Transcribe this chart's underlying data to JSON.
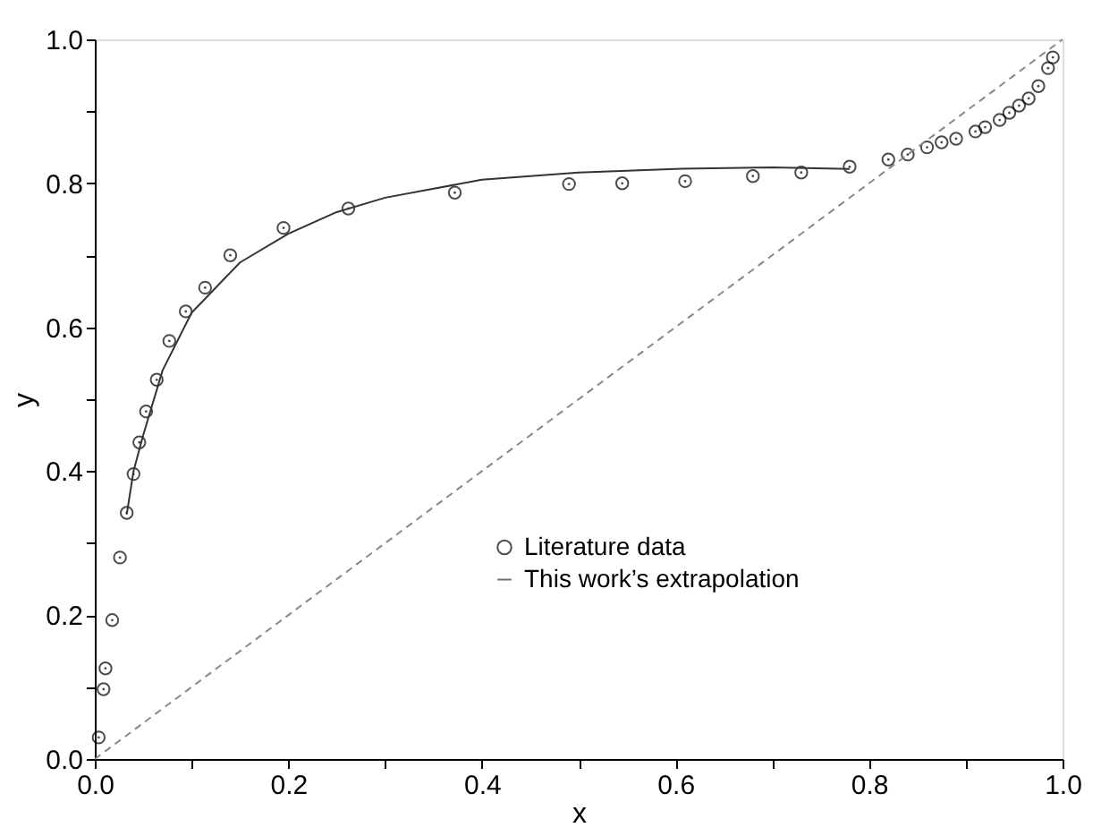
{
  "chart_data": {
    "type": "scatter",
    "xlabel": "x",
    "ylabel": "y",
    "xlim": [
      0,
      1
    ],
    "ylim": [
      0,
      1
    ],
    "xticks": [
      {
        "value": 0,
        "label": "0.0"
      },
      {
        "value": 0.1,
        "label": null
      },
      0.2,
      {
        "value": 0.3,
        "label": null
      },
      0.4,
      {
        "value": 0.5,
        "label": null
      },
      0.6,
      {
        "value": 0.7,
        "label": null
      },
      0.8,
      {
        "value": 0.9,
        "label": null
      },
      {
        "value": 1,
        "label": "1.0"
      }
    ],
    "yticks": [
      {
        "value": 0,
        "label": "0.0"
      },
      {
        "value": 0.1,
        "label": null
      },
      0.2,
      {
        "value": 0.3,
        "label": null
      },
      0.4,
      {
        "value": 0.5,
        "label": null
      },
      0.6,
      {
        "value": 0.7,
        "label": null
      },
      0.8,
      {
        "value": 0.9,
        "label": null
      },
      {
        "value": 1,
        "label": "1.0"
      }
    ],
    "grid": false,
    "legend": "bottom",
    "series": [
      {
        "name": "Literature data",
        "type": "scatter",
        "marker": "circle",
        "color": "#000000",
        "x": [
          0.004,
          0.009,
          0.011,
          0.018,
          0.026,
          0.033,
          0.04,
          0.046,
          0.053,
          0.064,
          0.077,
          0.094,
          0.114,
          0.14,
          0.195,
          0.262,
          0.372,
          0.49,
          0.545,
          0.61,
          0.68,
          0.73,
          0.78,
          0.82,
          0.84,
          0.86,
          0.875,
          0.89,
          0.91,
          0.92,
          0.935,
          0.945,
          0.955,
          0.965,
          0.975,
          0.985,
          0.99
        ],
        "values": [
          0.03,
          0.097,
          0.126,
          0.193,
          0.28,
          0.342,
          0.396,
          0.44,
          0.483,
          0.527,
          0.581,
          0.622,
          0.655,
          0.7,
          0.738,
          0.765,
          0.787,
          0.799,
          0.8,
          0.803,
          0.81,
          0.815,
          0.823,
          0.833,
          0.84,
          0.85,
          0.857,
          0.862,
          0.872,
          0.878,
          0.888,
          0.898,
          0.908,
          0.918,
          0.935,
          0.96,
          0.975
        ]
      },
      {
        "name": "This work’s extrapolation",
        "type": "line",
        "color": "#333333",
        "line_style": "solid",
        "x": [
          0.033,
          0.04,
          0.05,
          0.07,
          0.1,
          0.15,
          0.2,
          0.25,
          0.3,
          0.4,
          0.5,
          0.6,
          0.7,
          0.78
        ],
        "values": [
          0.34,
          0.4,
          0.45,
          0.54,
          0.62,
          0.69,
          0.73,
          0.76,
          0.78,
          0.805,
          0.815,
          0.82,
          0.822,
          0.82
        ]
      },
      {
        "type": "line",
        "color": "#888888",
        "line_style": "dashed",
        "x": [
          0,
          1
        ],
        "values": [
          0,
          1
        ]
      }
    ]
  }
}
